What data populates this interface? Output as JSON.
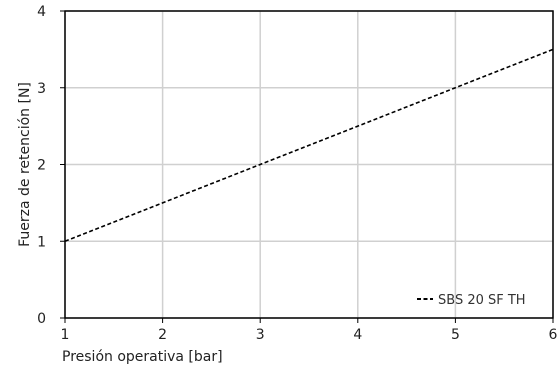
{
  "chart_data": {
    "type": "line",
    "title": "",
    "xlabel": "Presión operativa [bar]",
    "ylabel": "Fuerza de retención [N]",
    "xlim": [
      1,
      6
    ],
    "ylim": [
      0,
      4
    ],
    "x_ticks": [
      1,
      2,
      3,
      4,
      5,
      6
    ],
    "x_tick_labels": [
      "1",
      "2",
      "3",
      "4",
      "5",
      "6"
    ],
    "y_ticks": [
      0,
      1,
      2,
      3,
      4
    ],
    "y_tick_labels": [
      "0",
      "1",
      "2",
      "3",
      "4"
    ],
    "grid": true,
    "legend_position": "bottom-right",
    "series": [
      {
        "name": "SBS 20 SF TH",
        "line_style": "dashed",
        "color": "#000000",
        "x": [
          1,
          2,
          3,
          4,
          5,
          6
        ],
        "y": [
          1.0,
          1.5,
          2.0,
          2.5,
          3.0,
          3.5
        ]
      }
    ]
  }
}
